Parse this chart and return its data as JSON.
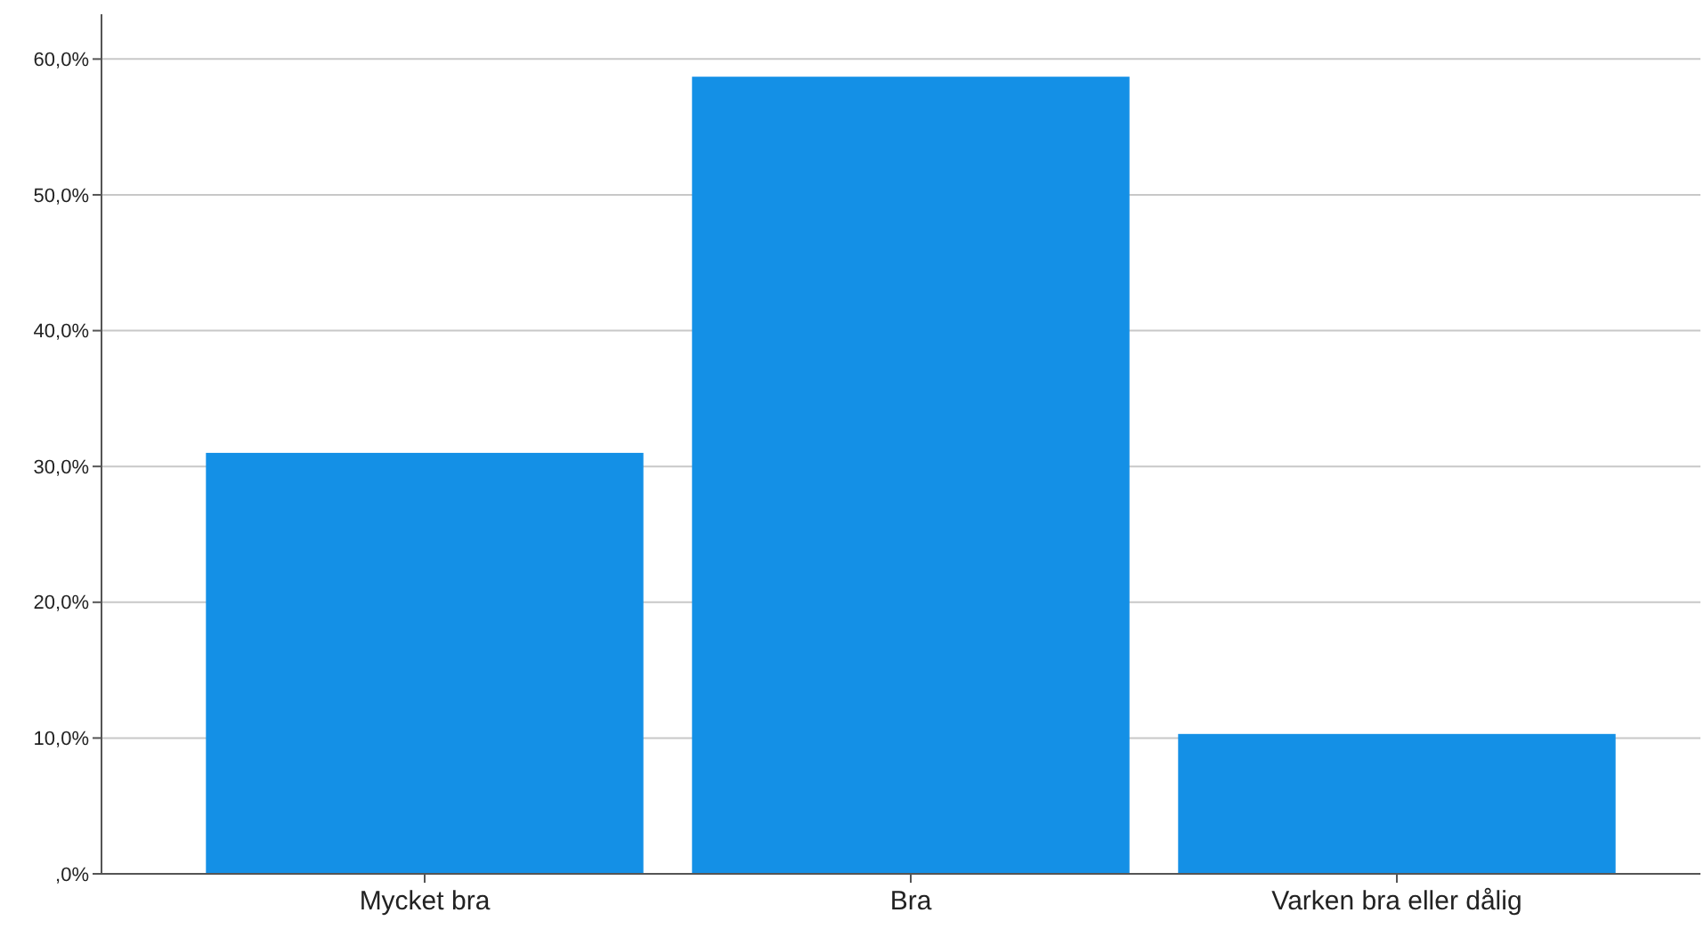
{
  "chart_data": {
    "type": "bar",
    "categories": [
      "Mycket bra",
      "Bra",
      "Varken bra eller dålig"
    ],
    "values": [
      31.0,
      58.7,
      10.3
    ],
    "color": "#1490e6",
    "ylim": [
      0,
      63.3
    ],
    "yticks": [
      {
        "value": 0,
        "label": ",0%"
      },
      {
        "value": 10,
        "label": "10,0%"
      },
      {
        "value": 20,
        "label": "20,0%"
      },
      {
        "value": 30,
        "label": "30,0%"
      },
      {
        "value": 40,
        "label": "40,0%"
      },
      {
        "value": 50,
        "label": "50,0%"
      },
      {
        "value": 60,
        "label": "60,0%"
      }
    ],
    "grid": "y"
  }
}
